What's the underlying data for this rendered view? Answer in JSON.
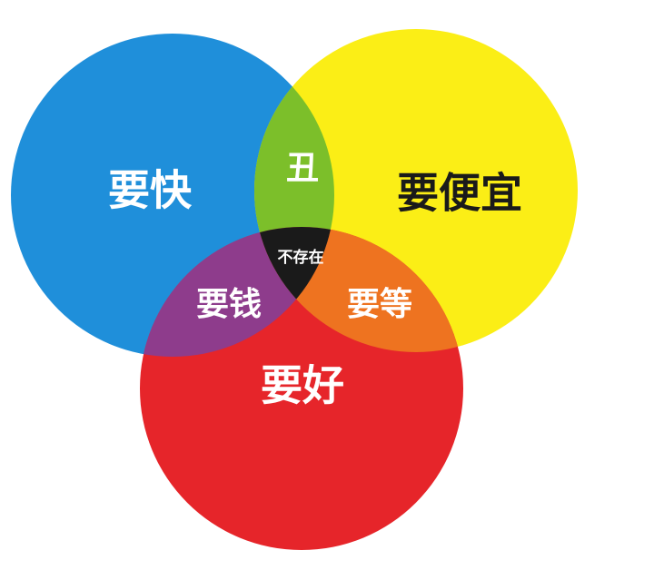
{
  "venn": {
    "sets": {
      "fast": {
        "label": "要快",
        "color": "#1f8fda"
      },
      "cheap": {
        "label": "要便宜",
        "color": "#fbee16"
      },
      "good": {
        "label": "要好",
        "color": "#e6252a"
      }
    },
    "overlaps": {
      "fast_cheap": {
        "label": "丑",
        "color": "#7cbf2a"
      },
      "fast_good": {
        "label": "要钱",
        "color": "#8e3c8c"
      },
      "cheap_good": {
        "label": "要等",
        "color": "#ee7320"
      },
      "fast_cheap_good": {
        "label": "不存在",
        "color": "#1a1a1a"
      }
    },
    "label_colors": {
      "light": "#ffffff",
      "dark": "#1a1a1a"
    }
  }
}
